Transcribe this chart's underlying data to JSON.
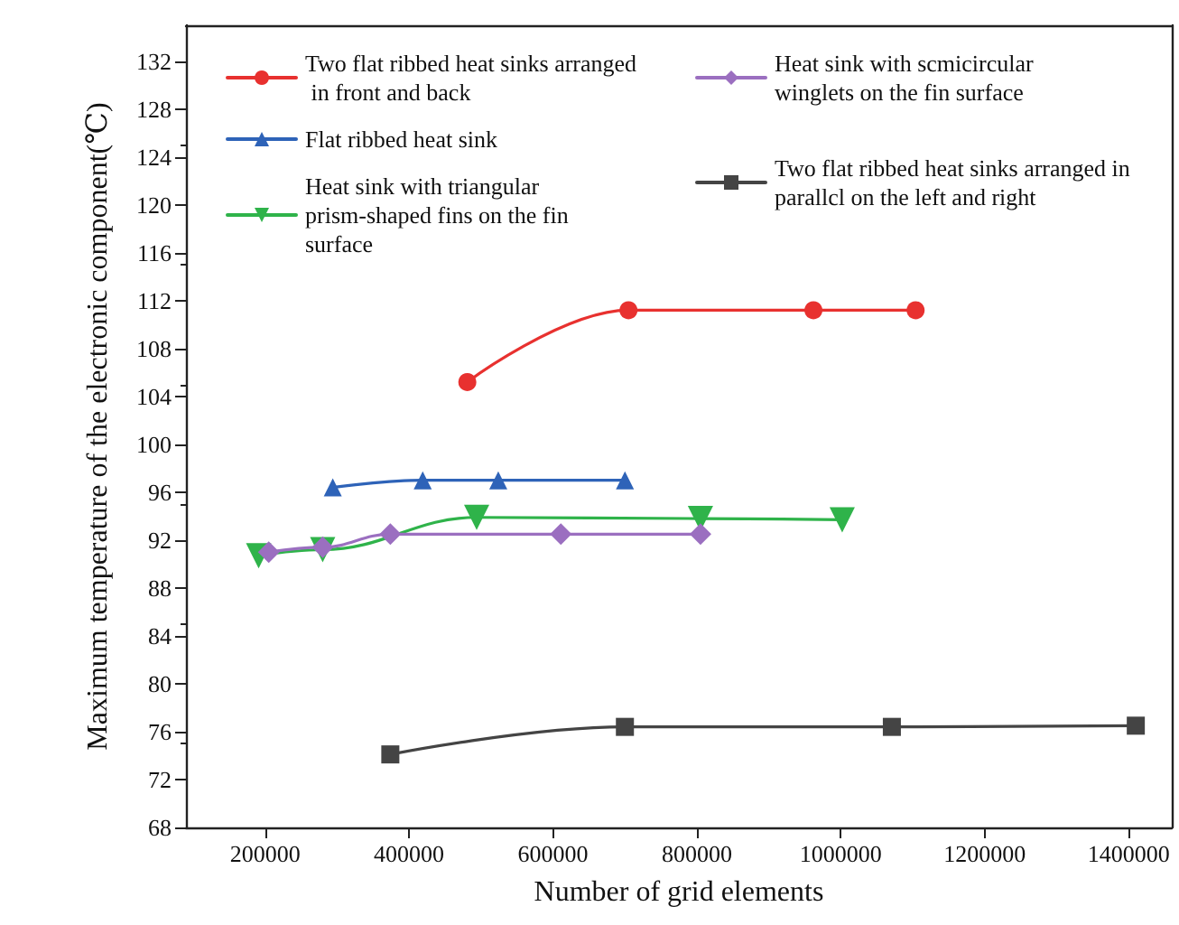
{
  "chart_data": {
    "type": "line",
    "xlabel": "Number of grid elements",
    "ylabel": "Maximum temperature of the electronic component(℃)",
    "xlim": [
      90000,
      1460000
    ],
    "xticks": [
      200000,
      400000,
      600000,
      800000,
      1000000,
      1200000,
      1400000
    ],
    "ylim": [
      68,
      135
    ],
    "yticks": [
      68,
      72,
      76,
      80,
      84,
      88,
      92,
      96,
      100,
      104,
      108,
      112,
      116,
      120,
      124,
      128,
      132
    ],
    "grid": false,
    "legend": "top",
    "line_style": "solid",
    "series": [
      {
        "name": "Two flat ribbed heat sinks arranged in front and back",
        "color": "#e8312f",
        "marker": "circle",
        "x": [
          481000,
          705000,
          962000,
          1104000
        ],
        "values": [
          105.2,
          111.2,
          111.2,
          111.2
        ]
      },
      {
        "name": "Flat ribbed heat sink",
        "color": "#2e63b8",
        "marker": "triangle",
        "x": [
          294000,
          419000,
          524000,
          700000
        ],
        "values": [
          96.4,
          97.0,
          97.0,
          97.0
        ]
      },
      {
        "name": "Heat sink with triangular prism-shaped fins on the fin surface",
        "color": "#2fb34a",
        "marker": "triangle-down",
        "x": [
          191000,
          280000,
          494000,
          805000,
          1002000
        ],
        "values": [
          90.7,
          91.2,
          93.9,
          93.8,
          93.7
        ]
      },
      {
        "name": "Heat sink with scmicircular winglets on the fin surface",
        "color": "#9b6fc0",
        "marker": "diamond",
        "x": [
          205000,
          280000,
          374000,
          611000,
          805000
        ],
        "values": [
          91.0,
          91.4,
          92.5,
          92.5,
          92.5
        ]
      },
      {
        "name": "Two flat ribbed heat sinks arranged in parallcl on the left and right",
        "color": "#444444",
        "marker": "square",
        "x": [
          374000,
          700000,
          1071000,
          1410000
        ],
        "values": [
          74.1,
          76.4,
          76.4,
          76.5
        ]
      }
    ]
  }
}
